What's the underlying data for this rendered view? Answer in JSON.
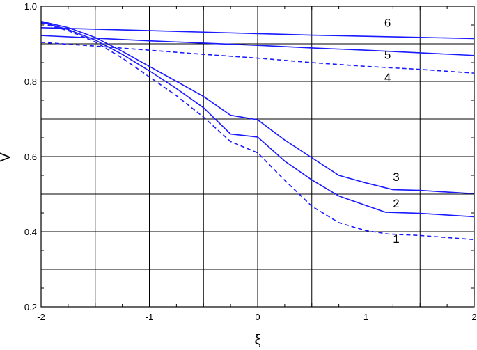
{
  "chart_data": {
    "type": "line",
    "xlabel": "ξ",
    "ylabel": "V",
    "xlim": [
      -2,
      2
    ],
    "ylim": [
      0.2,
      1.0
    ],
    "grid": true,
    "x_ticks": [
      -2,
      -1,
      0,
      1,
      2
    ],
    "x_tick_labels": [
      "-2",
      "-1",
      "0",
      "1",
      "2"
    ],
    "y_ticks": [
      0.2,
      0.4,
      0.6,
      0.8,
      1.0
    ],
    "y_tick_labels": [
      "0.2",
      "0.4",
      "0.6",
      "0.8",
      "1.0"
    ],
    "colors": {
      "curve": "#1a1aff",
      "grid": "#000000"
    },
    "series": [
      {
        "name": "1",
        "dashed": true,
        "x": [
          -2.0,
          -1.75,
          -1.5,
          -1.25,
          -1.0,
          -0.75,
          -0.5,
          -0.25,
          0.0,
          0.25,
          0.5,
          0.75,
          1.0,
          1.2,
          1.5,
          2.0
        ],
        "y": [
          0.955,
          0.935,
          0.905,
          0.862,
          0.812,
          0.762,
          0.705,
          0.64,
          0.61,
          0.537,
          0.468,
          0.424,
          0.403,
          0.394,
          0.39,
          0.379
        ],
        "label_pos": [
          1.28,
          0.37
        ]
      },
      {
        "name": "2",
        "dashed": false,
        "x": [
          -2.0,
          -1.75,
          -1.5,
          -1.25,
          -1.0,
          -0.75,
          -0.5,
          -0.25,
          0.0,
          0.25,
          0.5,
          0.75,
          1.0,
          1.18,
          1.5,
          2.0
        ],
        "y": [
          0.958,
          0.938,
          0.91,
          0.872,
          0.828,
          0.781,
          0.73,
          0.66,
          0.652,
          0.588,
          0.538,
          0.495,
          0.47,
          0.452,
          0.449,
          0.44
        ],
        "label_pos": [
          1.28,
          0.465
        ]
      },
      {
        "name": "3",
        "dashed": false,
        "x": [
          -2.0,
          -1.75,
          -1.5,
          -1.25,
          -1.0,
          -0.75,
          -0.5,
          -0.25,
          0.0,
          0.25,
          0.5,
          0.75,
          1.0,
          1.25,
          1.5,
          2.0
        ],
        "y": [
          0.96,
          0.943,
          0.917,
          0.88,
          0.84,
          0.8,
          0.76,
          0.71,
          0.698,
          0.644,
          0.597,
          0.55,
          0.53,
          0.512,
          0.51,
          0.501
        ],
        "label_pos": [
          1.28,
          0.535
        ]
      },
      {
        "name": "4",
        "dashed": true,
        "x": [
          -2.0,
          -1.5,
          -1.0,
          -0.5,
          0.0,
          0.5,
          1.0,
          1.5,
          2.0
        ],
        "y": [
          0.904,
          0.894,
          0.883,
          0.872,
          0.862,
          0.85,
          0.84,
          0.832,
          0.822
        ],
        "label_pos": [
          1.2,
          0.8
        ]
      },
      {
        "name": "5",
        "dashed": false,
        "x": [
          -2.0,
          -1.5,
          -1.0,
          -0.5,
          0.0,
          0.5,
          1.0,
          1.5,
          2.0
        ],
        "y": [
          0.922,
          0.915,
          0.908,
          0.902,
          0.896,
          0.889,
          0.883,
          0.876,
          0.869
        ],
        "label_pos": [
          1.2,
          0.86
        ]
      },
      {
        "name": "6",
        "dashed": false,
        "x": [
          -2.0,
          -1.5,
          -1.0,
          -0.5,
          0.0,
          0.5,
          1.0,
          1.5,
          2.0
        ],
        "y": [
          0.943,
          0.939,
          0.935,
          0.931,
          0.927,
          0.923,
          0.92,
          0.917,
          0.914
        ],
        "label_pos": [
          1.2,
          0.945
        ]
      }
    ]
  }
}
